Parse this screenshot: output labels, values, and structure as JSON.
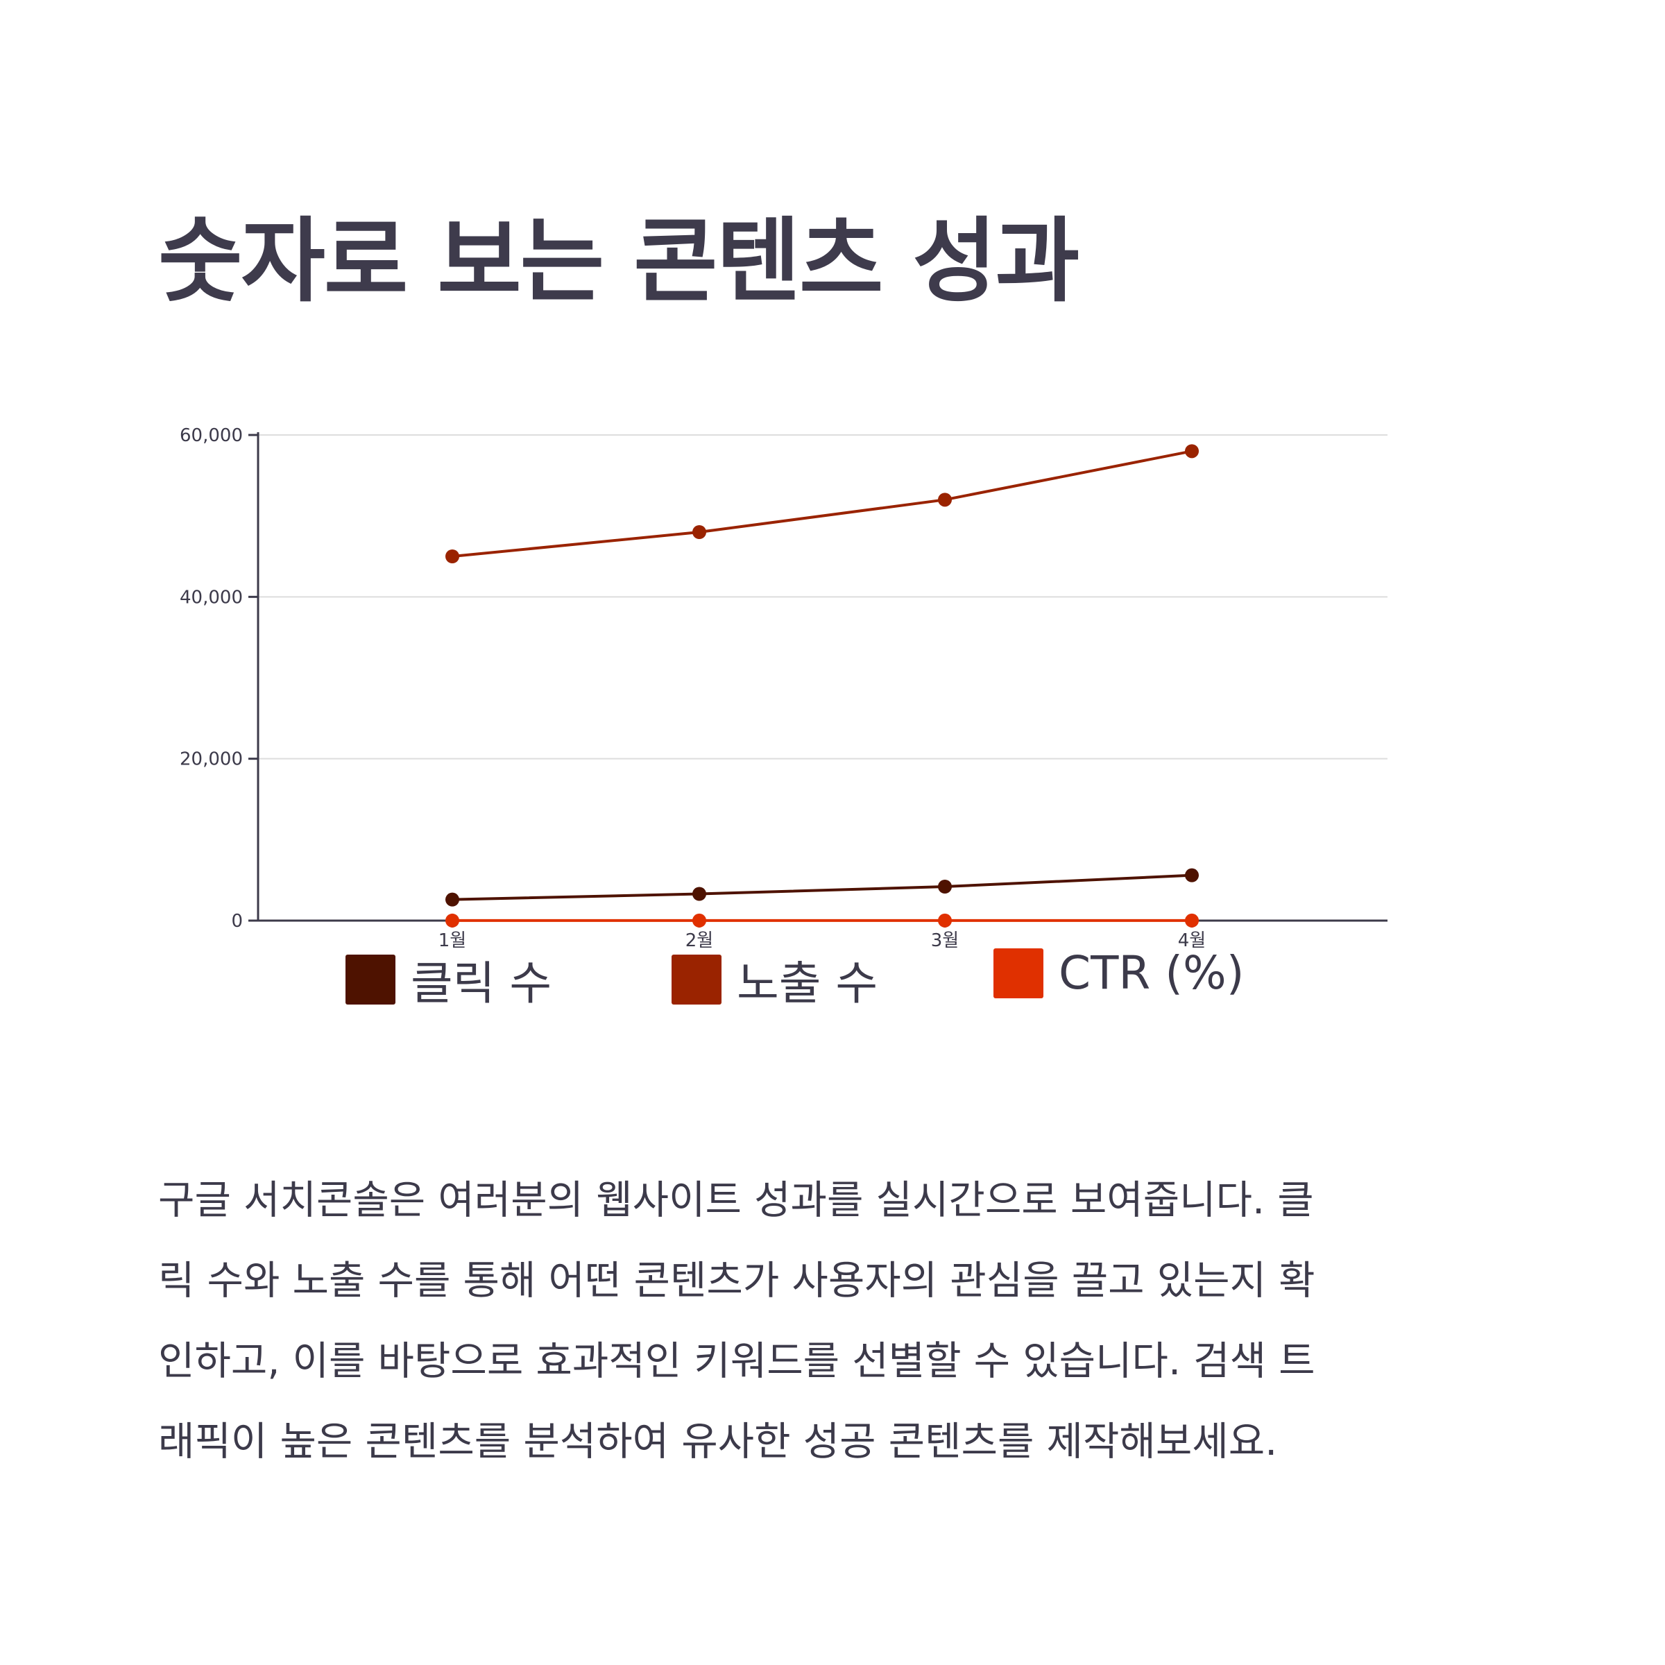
{
  "heading": "숫자로 보는 콘텐츠 성과",
  "chart_data": {
    "type": "line",
    "categories": [
      "1월",
      "2월",
      "3월",
      "4월"
    ],
    "yticks": [
      "0",
      "20,000",
      "40,000",
      "60,000"
    ],
    "ylim": [
      0,
      60000
    ],
    "grid": true,
    "legend_position": "bottom",
    "series": [
      {
        "name": "클릭 수",
        "values": [
          2600,
          3300,
          4200,
          5600
        ],
        "color": "#4e1200"
      },
      {
        "name": "노출 수",
        "values": [
          45000,
          48000,
          52000,
          58000
        ],
        "color": "#9a2300"
      },
      {
        "name": "CTR (%)",
        "values": [
          5.8,
          6.9,
          8.1,
          9.7
        ],
        "color": "#e03000"
      }
    ]
  },
  "body_lines": [
    "구글 서치콘솔은 여러분의 웹사이트 성과를 실시간으로 보여줍니다. 클",
    "릭 수와 노출 수를 통해 어떤 콘텐츠가 사용자의 관심을 끌고 있는지 확",
    "인하고, 이를 바탕으로 효과적인 키워드를 선별할 수 있습니다. 검색 트",
    "래픽이 높은 콘텐츠를 분석하여 유사한 성공 콘텐츠를 제작해보세요."
  ]
}
